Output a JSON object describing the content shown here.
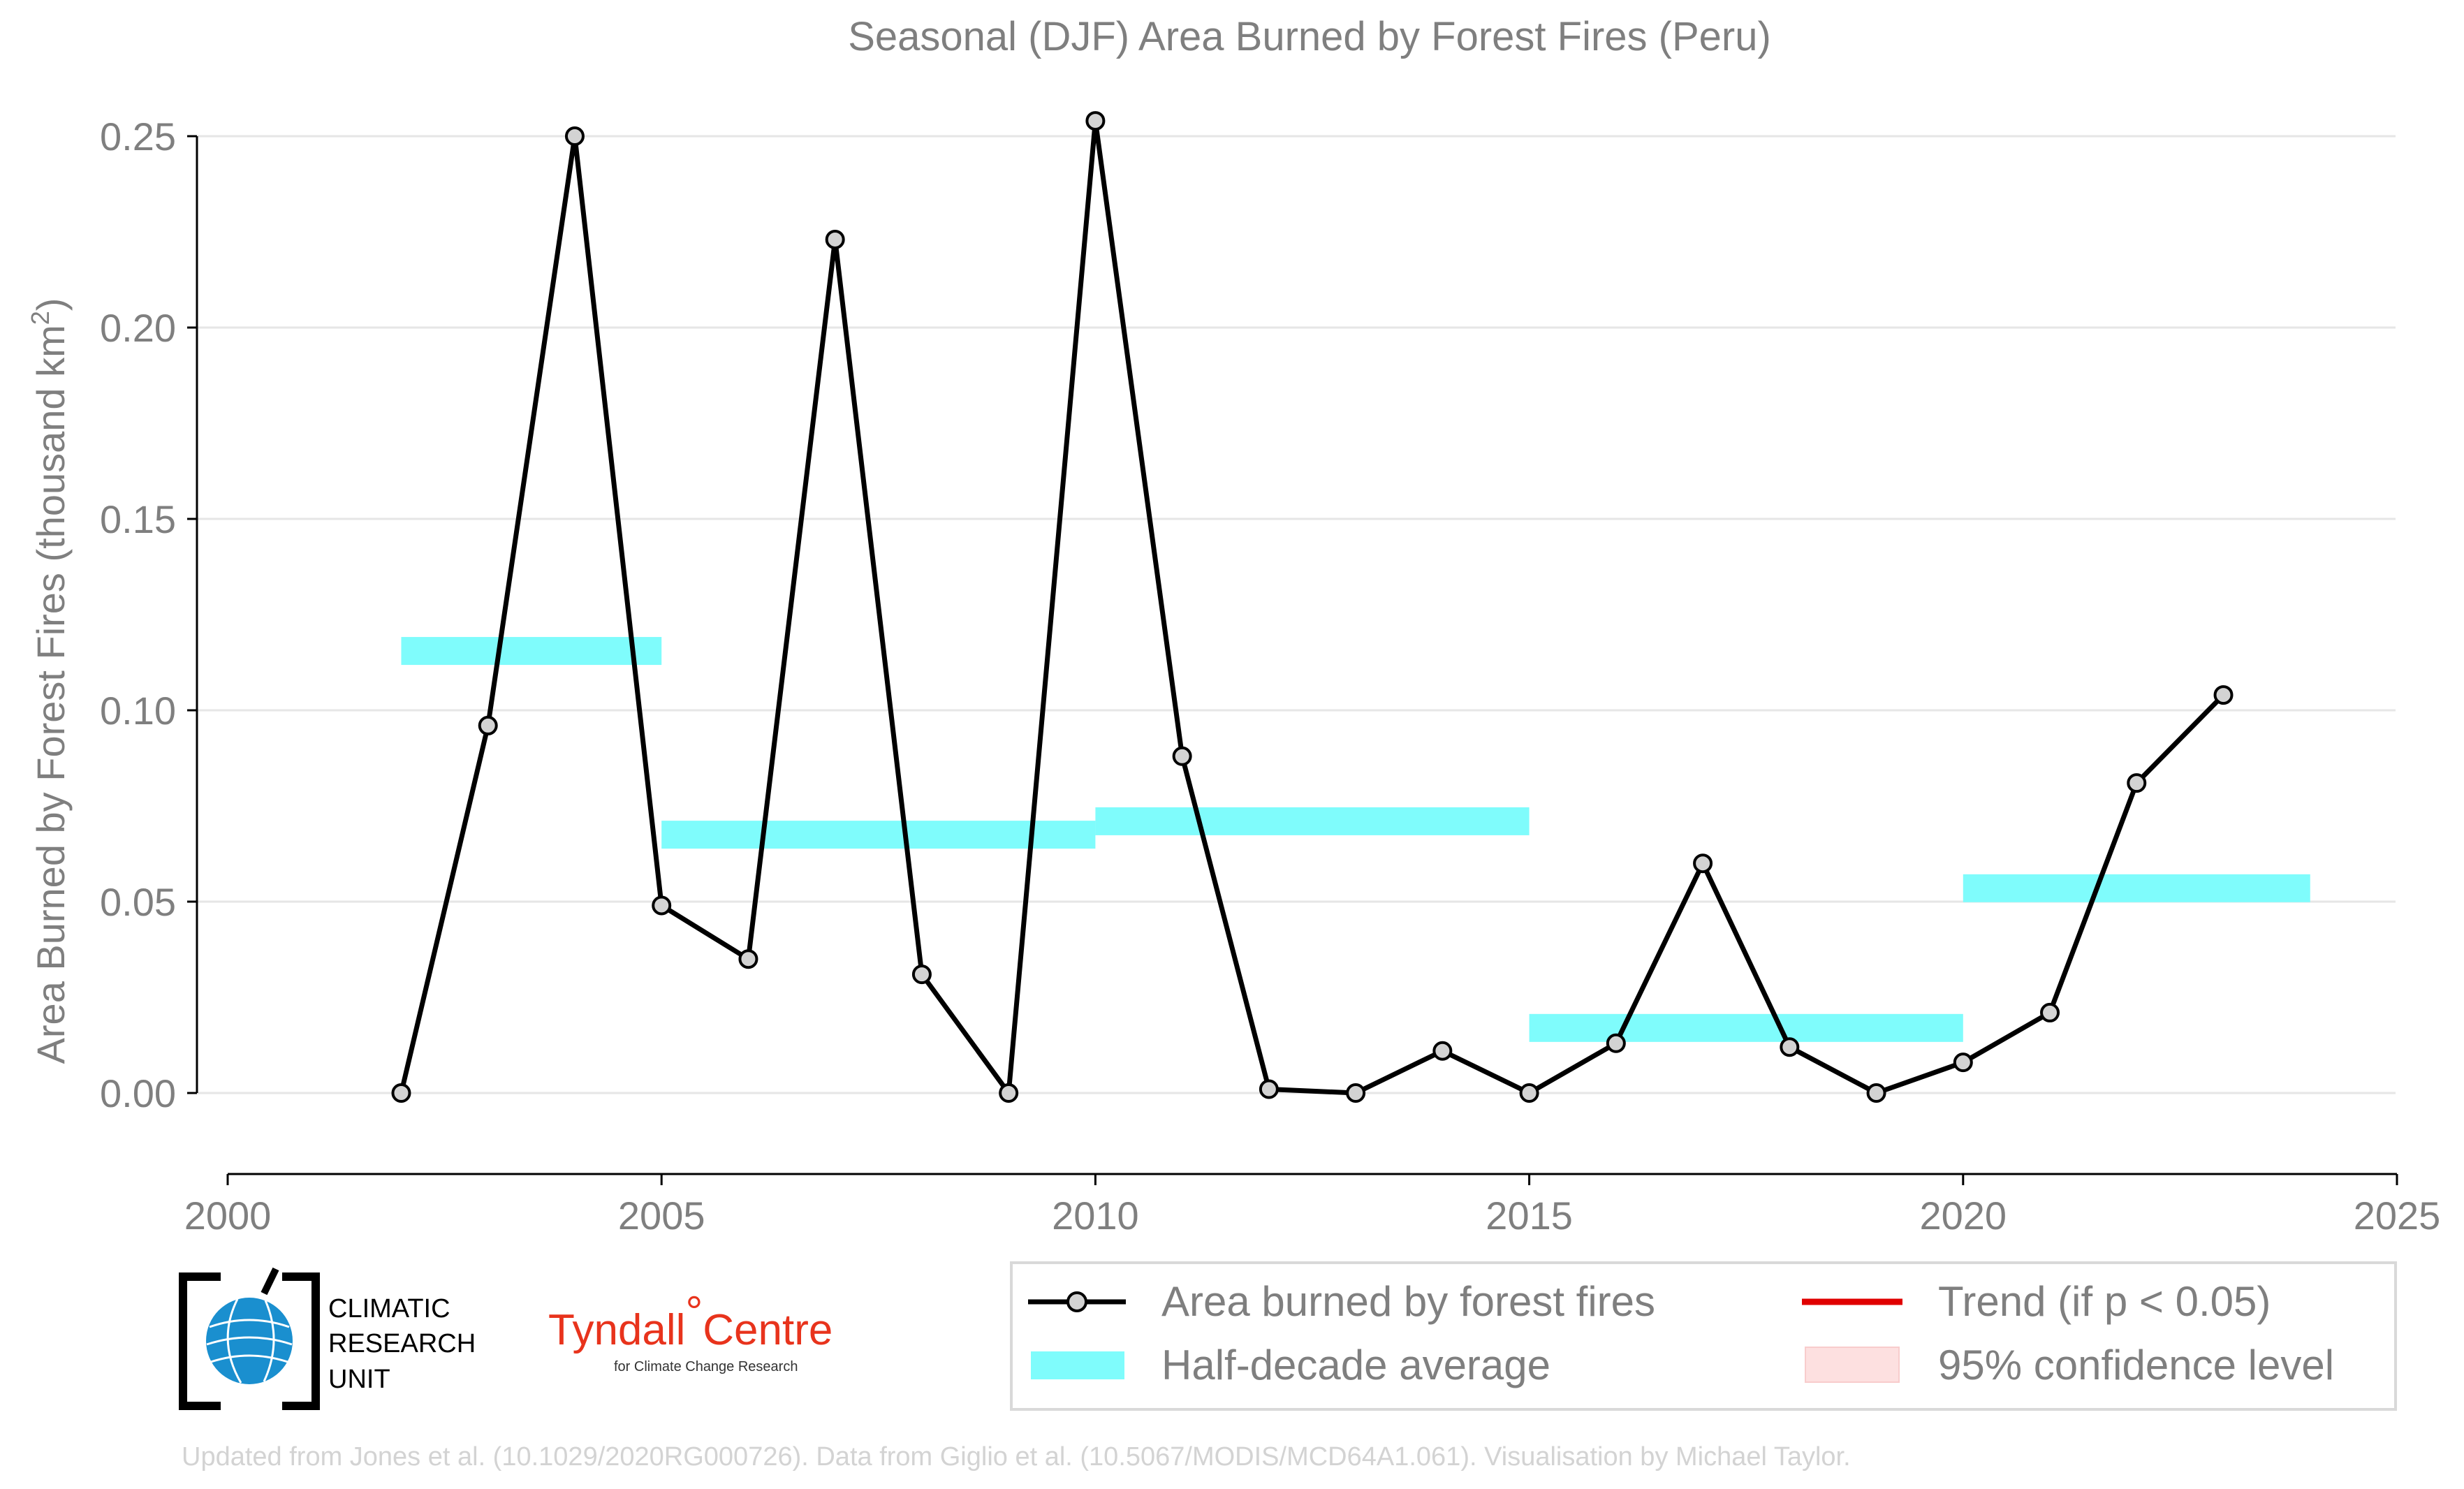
{
  "chart_data": {
    "type": "line",
    "title": "Seasonal (DJF) Area Burned by Forest Fires (Peru)",
    "ylabel": "Area Burned by Forest Fires (thousand km",
    "ylabel_superscript": "2",
    "ylabel_close": ")",
    "xlabel": "",
    "xlim": [
      2000,
      2025
    ],
    "ylim": [
      -0.015,
      0.258
    ],
    "x_ticks": [
      2000,
      2005,
      2010,
      2015,
      2020,
      2025
    ],
    "x_tick_labels": [
      "2000",
      "2005",
      "2010",
      "2015",
      "2020",
      "2025"
    ],
    "y_ticks": [
      0.0,
      0.05,
      0.1,
      0.15,
      0.2,
      0.25
    ],
    "y_tick_labels": [
      "0.00",
      "0.05",
      "0.10",
      "0.15",
      "0.20",
      "0.25"
    ],
    "grid": "horizontal",
    "series": [
      {
        "name": "Area burned by forest fires",
        "color": "#000000",
        "marker_fill": "#d3d3d3",
        "x": [
          2002,
          2003,
          2004,
          2005,
          2006,
          2007,
          2008,
          2009,
          2010,
          2011,
          2012,
          2013,
          2014,
          2015,
          2016,
          2017,
          2018,
          2019,
          2020,
          2021,
          2022,
          2023
        ],
        "y": [
          0.0,
          0.096,
          0.25,
          0.049,
          0.035,
          0.223,
          0.031,
          0.0,
          0.254,
          0.088,
          0.001,
          0.0,
          0.011,
          0.0,
          0.013,
          0.06,
          0.012,
          0.0,
          0.008,
          0.021,
          0.081,
          0.104
        ]
      }
    ],
    "half_decade_average": {
      "name": "Half-decade average",
      "color": "#7ffcfc",
      "segments": [
        {
          "x0": 2002,
          "x1": 2005,
          "y": 0.1155
        },
        {
          "x0": 2005,
          "x1": 2010,
          "y": 0.0675
        },
        {
          "x0": 2010,
          "x1": 2015,
          "y": 0.071
        },
        {
          "x0": 2015,
          "x1": 2020,
          "y": 0.017
        },
        {
          "x0": 2020,
          "x1": 2024,
          "y": 0.0535
        }
      ]
    },
    "legend": {
      "placement": "bottom-right",
      "entries": [
        {
          "label": "Area burned by forest fires",
          "kind": "line-marker",
          "color": "#000000"
        },
        {
          "label": "Trend (if p < 0.05)",
          "kind": "line",
          "color": "#e00000"
        },
        {
          "label": "Half-decade average",
          "kind": "band",
          "color": "#7ffcfc"
        },
        {
          "label": "95% confidence level",
          "kind": "band",
          "color": "#fde0e0"
        }
      ]
    }
  },
  "logos": {
    "cru": {
      "line1": "CLIMATIC",
      "line2": "RESEARCH",
      "line3": "UNIT",
      "icon": "globe-icon"
    },
    "tyndall": {
      "main": "Tyndall",
      "degree": "°",
      "centre": "Centre",
      "sub": "for Climate Change Research"
    }
  },
  "footer": "Updated from Jones et al. (10.1029/2020RG000726). Data from Giglio et al. (10.5067/MODIS/MCD64A1.061). Visualisation by Michael Taylor."
}
